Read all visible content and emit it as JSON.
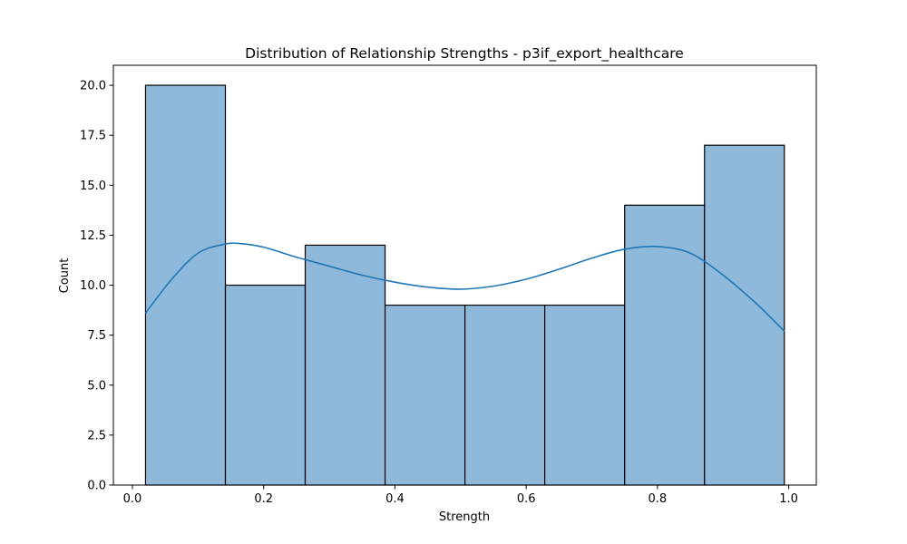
{
  "chart_data": {
    "type": "bar",
    "title": "Distribution of Relationship Strengths - p3if_export_healthcare",
    "xlabel": "Strength",
    "ylabel": "Count",
    "bins": [
      {
        "x0": 0.02,
        "x1": 0.1417,
        "count": 20
      },
      {
        "x0": 0.1417,
        "x1": 0.2633,
        "count": 10
      },
      {
        "x0": 0.2633,
        "x1": 0.385,
        "count": 12
      },
      {
        "x0": 0.385,
        "x1": 0.5067,
        "count": 9
      },
      {
        "x0": 0.5067,
        "x1": 0.6283,
        "count": 9
      },
      {
        "x0": 0.6283,
        "x1": 0.75,
        "count": 9
      },
      {
        "x0": 0.75,
        "x1": 0.8717,
        "count": 14
      },
      {
        "x0": 0.8717,
        "x1": 0.9933,
        "count": 17
      }
    ],
    "kde": {
      "x": [
        0.02,
        0.06,
        0.1,
        0.14,
        0.165,
        0.2,
        0.25,
        0.3,
        0.35,
        0.4,
        0.45,
        0.5,
        0.55,
        0.6,
        0.65,
        0.7,
        0.75,
        0.8,
        0.85,
        0.9,
        0.95,
        0.9933
      ],
      "y": [
        8.6,
        10.3,
        11.6,
        12.05,
        12.08,
        11.9,
        11.4,
        10.95,
        10.5,
        10.15,
        9.9,
        9.8,
        9.95,
        10.3,
        10.8,
        11.35,
        11.8,
        11.93,
        11.6,
        10.5,
        9.1,
        7.7
      ]
    },
    "xlim": [
      -0.029,
      1.042
    ],
    "ylim": [
      0,
      21
    ],
    "xticks": [
      0.0,
      0.2,
      0.4,
      0.6,
      0.8,
      1.0
    ],
    "xtick_labels": [
      "0.0",
      "0.2",
      "0.4",
      "0.6",
      "0.8",
      "1.0"
    ],
    "yticks": [
      0,
      2.5,
      5,
      7.5,
      10,
      12.5,
      15,
      17.5,
      20
    ],
    "ytick_labels": [
      "0.0",
      "2.5",
      "5.0",
      "7.5",
      "10.0",
      "12.5",
      "15.0",
      "17.5",
      "20.0"
    ],
    "grid": false,
    "colors": {
      "bar_fill": "#8fb9da",
      "bar_edge": "#000000",
      "kde_line": "#1f77b4"
    }
  }
}
